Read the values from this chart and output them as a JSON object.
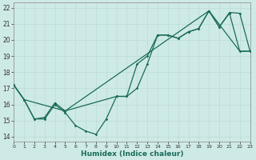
{
  "xlabel": "Humidex (Indice chaleur)",
  "xlim": [
    0,
    23
  ],
  "ylim": [
    13.7,
    22.3
  ],
  "xticks": [
    0,
    1,
    2,
    3,
    4,
    5,
    6,
    7,
    8,
    9,
    10,
    11,
    12,
    13,
    14,
    15,
    16,
    17,
    18,
    19,
    20,
    21,
    22,
    23
  ],
  "yticks": [
    14,
    15,
    16,
    17,
    18,
    19,
    20,
    21,
    22
  ],
  "bg_color": "#ceeae6",
  "grid_color_minor": "#bbdbd7",
  "grid_color_major": "#bbdbd7",
  "line_color": "#1a6b5a",
  "line1_x": [
    0,
    1,
    2,
    3,
    4,
    5,
    6,
    7,
    8,
    9,
    10,
    11,
    12,
    13,
    14,
    15,
    16,
    17,
    18,
    19,
    20,
    21,
    22,
    23
  ],
  "line1_y": [
    17.2,
    16.3,
    15.1,
    15.1,
    16.0,
    15.5,
    14.7,
    14.35,
    14.15,
    15.1,
    16.5,
    16.5,
    18.5,
    19.0,
    20.3,
    20.3,
    20.1,
    20.5,
    20.7,
    21.8,
    20.8,
    21.7,
    21.65,
    19.3
  ],
  "line2_x": [
    0,
    1,
    2,
    3,
    4,
    5,
    10,
    11,
    12,
    13,
    14,
    15,
    16,
    17,
    18,
    19,
    20,
    21,
    22,
    23
  ],
  "line2_y": [
    17.2,
    16.3,
    15.1,
    15.2,
    16.1,
    15.6,
    16.5,
    16.5,
    17.0,
    18.5,
    20.3,
    20.3,
    20.1,
    20.5,
    20.7,
    21.8,
    20.8,
    21.65,
    19.3,
    19.3
  ],
  "line3_x": [
    0,
    1,
    5,
    19,
    22,
    23
  ],
  "line3_y": [
    17.2,
    16.3,
    15.6,
    21.8,
    19.3,
    19.3
  ]
}
